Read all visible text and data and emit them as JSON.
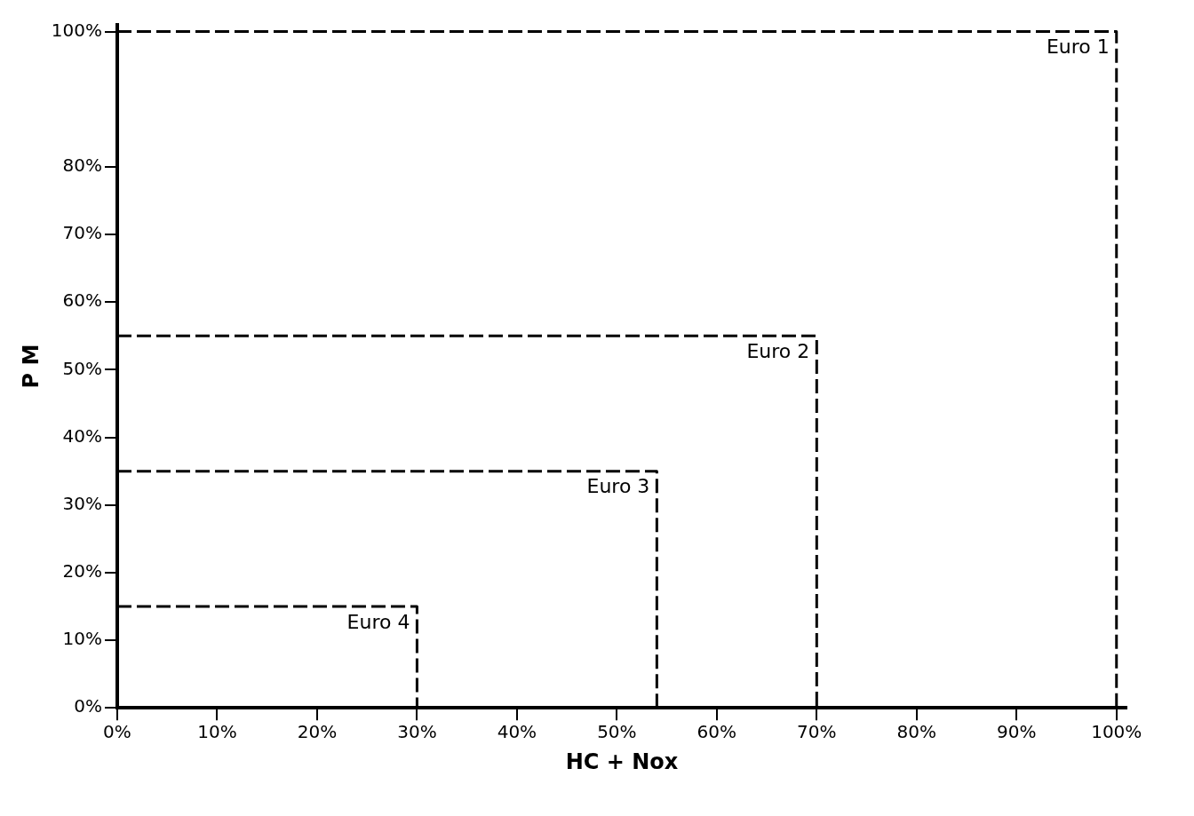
{
  "chart_data": {
    "type": "step",
    "xlabel": "HC + Nox",
    "ylabel": "P M",
    "xlim": [
      0,
      101
    ],
    "xticks": [
      {
        "value": 0,
        "label": "0%"
      },
      {
        "value": 10,
        "label": "10%"
      },
      {
        "value": 20,
        "label": "20%"
      },
      {
        "value": 30,
        "label": "30%"
      },
      {
        "value": 40,
        "label": "40%"
      },
      {
        "value": 50,
        "label": "50%"
      },
      {
        "value": 60,
        "label": "60%"
      },
      {
        "value": 70,
        "label": "70%"
      },
      {
        "value": 80,
        "label": "80%"
      },
      {
        "value": 90,
        "label": "90%"
      },
      {
        "value": 100,
        "label": "100%"
      }
    ],
    "ylim": [
      0,
      101
    ],
    "yticks": [
      {
        "value": 0,
        "label": "0%"
      },
      {
        "value": 10,
        "label": "10%"
      },
      {
        "value": 20,
        "label": "20%"
      },
      {
        "value": 30,
        "label": "30%"
      },
      {
        "value": 40,
        "label": "40%"
      },
      {
        "value": 50,
        "label": "50%"
      },
      {
        "value": 60,
        "label": "60%"
      },
      {
        "value": 70,
        "label": "70%"
      },
      {
        "value": 80,
        "label": "80%"
      },
      {
        "value": 100,
        "label": "100%"
      }
    ],
    "grid": false,
    "legend": false,
    "marker": "none",
    "series": [
      {
        "name": "Euro 1",
        "color": "#000000",
        "line_style": "dashed",
        "x": [
          0,
          100
        ],
        "values": [
          100,
          0
        ]
      },
      {
        "name": "Euro 2",
        "color": "#000000",
        "line_style": "dashed",
        "x": [
          0,
          70
        ],
        "values": [
          55,
          0
        ]
      },
      {
        "name": "Euro 3",
        "color": "#000000",
        "line_style": "dashed",
        "x": [
          0,
          54
        ],
        "values": [
          35,
          0
        ]
      },
      {
        "name": "Euro 4",
        "color": "#000000",
        "line_style": "dashed",
        "x": [
          0,
          30
        ],
        "values": [
          15,
          0
        ]
      }
    ]
  }
}
